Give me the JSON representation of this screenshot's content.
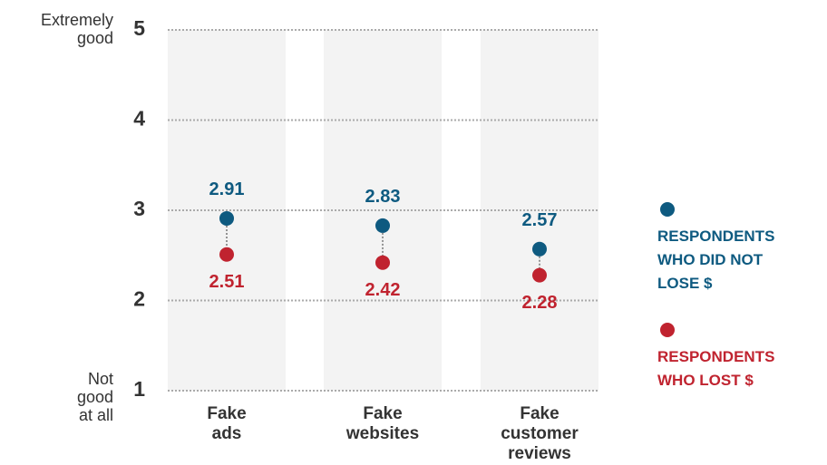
{
  "chart_data": {
    "type": "dot",
    "annotations": [
      "Extremely good",
      "Not good at all"
    ],
    "categories": [
      "Fake ads",
      "Fake websites",
      "Fake customer reviews"
    ],
    "series": [
      {
        "name": "RESPONDENTS WHO DID NOT LOSE $",
        "color": "#0e5a80",
        "values": [
          2.91,
          2.83,
          2.57
        ]
      },
      {
        "name": "RESPONDENTS WHO LOST $",
        "color": "#c0232f",
        "values": [
          2.51,
          2.42,
          2.28
        ]
      }
    ],
    "ylim": [
      1,
      5
    ],
    "yticks": [
      1,
      2,
      3,
      4,
      5
    ],
    "grid": true
  }
}
